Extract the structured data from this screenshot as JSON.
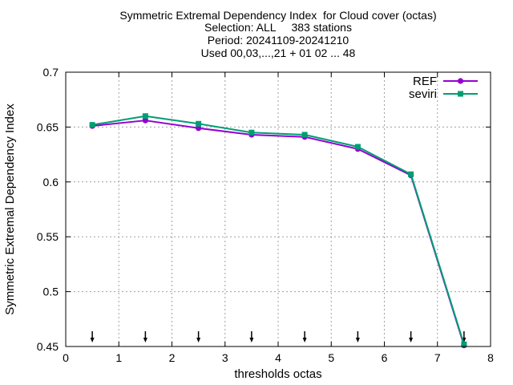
{
  "chart_data": {
    "type": "line",
    "title_lines": [
      "Symmetric Extremal Dependency Index  for Cloud cover (octas)",
      "Selection: ALL     383 stations",
      "Period: 20241109-20241210",
      "Used 00,03,...,21 + 01 02 ... 48"
    ],
    "xlabel": "thresholds octas",
    "ylabel": "Symmetric Extremal Dependency Index",
    "xlim": [
      0,
      8
    ],
    "ylim": [
      0.45,
      0.7
    ],
    "x_ticks": [
      "0",
      "1",
      "2",
      "3",
      "4",
      "5",
      "6",
      "7",
      "8"
    ],
    "y_ticks": [
      "0.45",
      "0.5",
      "0.55",
      "0.6",
      "0.65",
      "0.7"
    ],
    "grid": true,
    "legend_position": "top-right",
    "x": [
      0.5,
      1.5,
      2.5,
      3.5,
      4.5,
      5.5,
      6.5,
      7.5
    ],
    "series": [
      {
        "name": "REF",
        "color": "#9400d3",
        "values": [
          0.651,
          0.656,
          0.649,
          0.643,
          0.641,
          0.63,
          0.606,
          0.451
        ]
      },
      {
        "name": "seviri",
        "color": "#009e73",
        "values": [
          0.652,
          0.66,
          0.653,
          0.645,
          0.643,
          0.632,
          0.607,
          0.452
        ]
      }
    ],
    "threshold_markers": [
      0.5,
      1.5,
      2.5,
      3.5,
      4.5,
      5.5,
      6.5,
      7.5
    ]
  }
}
